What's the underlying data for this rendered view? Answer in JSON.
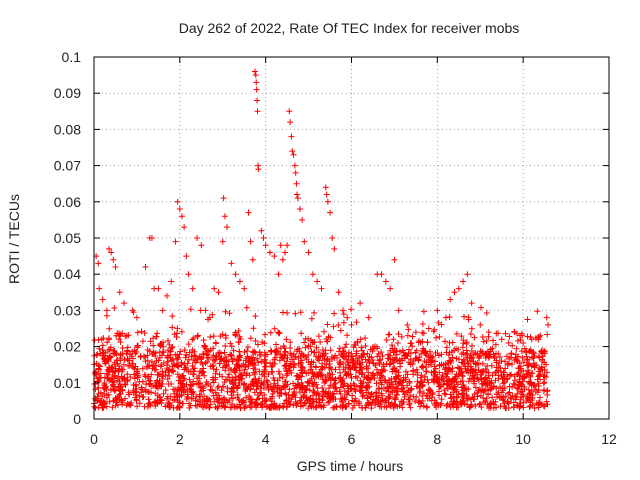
{
  "chart_data": {
    "type": "scatter",
    "title": "Day 262 of 2022, Rate Of TEC Index for receiver mobs",
    "xlabel": "GPS time / hours",
    "ylabel": "ROTI / TECUs",
    "xlim": [
      0,
      12
    ],
    "ylim": [
      0,
      0.1
    ],
    "xticks": [
      0,
      2,
      4,
      6,
      8,
      10,
      12
    ],
    "xtick_labels": [
      "0",
      "2",
      "4",
      "6",
      "8",
      "10",
      "12"
    ],
    "yticks": [
      0,
      0.01,
      0.02,
      0.03,
      0.04,
      0.05,
      0.06,
      0.07,
      0.08,
      0.09,
      0.1
    ],
    "ytick_labels": [
      "0",
      "0.01",
      "0.02",
      "0.03",
      "0.04",
      "0.05",
      "0.06",
      "0.07",
      "0.08",
      "0.09",
      "0.1"
    ],
    "grid": true,
    "marker": "+",
    "color": "#ff0000",
    "x_range_of_data": [
      0,
      10.6
    ],
    "series": [
      {
        "points": [
          [
            0.05,
            0.045
          ],
          [
            0.1,
            0.043
          ],
          [
            0.12,
            0.036
          ],
          [
            0.2,
            0.033
          ],
          [
            0.3,
            0.03
          ],
          [
            0.35,
            0.047
          ],
          [
            0.4,
            0.046
          ],
          [
            0.45,
            0.044
          ],
          [
            0.5,
            0.042
          ],
          [
            0.6,
            0.035
          ],
          [
            0.7,
            0.032
          ],
          [
            0.9,
            0.03
          ],
          [
            1.0,
            0.028
          ],
          [
            1.2,
            0.042
          ],
          [
            1.3,
            0.05
          ],
          [
            1.35,
            0.05
          ],
          [
            1.4,
            0.036
          ],
          [
            1.5,
            0.036
          ],
          [
            1.6,
            0.03
          ],
          [
            1.7,
            0.034
          ],
          [
            1.8,
            0.038
          ],
          [
            1.9,
            0.049
          ],
          [
            1.95,
            0.06
          ],
          [
            2.0,
            0.058
          ],
          [
            2.05,
            0.056
          ],
          [
            2.1,
            0.053
          ],
          [
            2.15,
            0.045
          ],
          [
            2.2,
            0.04
          ],
          [
            2.3,
            0.036
          ],
          [
            2.4,
            0.05
          ],
          [
            2.5,
            0.048
          ],
          [
            2.6,
            0.03
          ],
          [
            2.7,
            0.028
          ],
          [
            2.8,
            0.036
          ],
          [
            2.9,
            0.035
          ],
          [
            3.0,
            0.049
          ],
          [
            3.02,
            0.061
          ],
          [
            3.05,
            0.056
          ],
          [
            3.1,
            0.053
          ],
          [
            3.2,
            0.043
          ],
          [
            3.3,
            0.04
          ],
          [
            3.4,
            0.038
          ],
          [
            3.5,
            0.036
          ],
          [
            3.6,
            0.057
          ],
          [
            3.65,
            0.049
          ],
          [
            3.7,
            0.044
          ],
          [
            3.75,
            0.096
          ],
          [
            3.77,
            0.095
          ],
          [
            3.78,
            0.093
          ],
          [
            3.79,
            0.091
          ],
          [
            3.8,
            0.088
          ],
          [
            3.81,
            0.085
          ],
          [
            3.82,
            0.07
          ],
          [
            3.83,
            0.069
          ],
          [
            3.9,
            0.052
          ],
          [
            3.95,
            0.05
          ],
          [
            4.0,
            0.048
          ],
          [
            4.1,
            0.046
          ],
          [
            4.2,
            0.045
          ],
          [
            4.3,
            0.04
          ],
          [
            4.35,
            0.048
          ],
          [
            4.4,
            0.044
          ],
          [
            4.45,
            0.046
          ],
          [
            4.5,
            0.048
          ],
          [
            4.55,
            0.085
          ],
          [
            4.57,
            0.082
          ],
          [
            4.6,
            0.078
          ],
          [
            4.62,
            0.074
          ],
          [
            4.65,
            0.073
          ],
          [
            4.68,
            0.07
          ],
          [
            4.7,
            0.068
          ],
          [
            4.72,
            0.065
          ],
          [
            4.73,
            0.062
          ],
          [
            4.75,
            0.061
          ],
          [
            4.8,
            0.058
          ],
          [
            4.85,
            0.055
          ],
          [
            4.9,
            0.049
          ],
          [
            5.0,
            0.046
          ],
          [
            5.1,
            0.04
          ],
          [
            5.2,
            0.038
          ],
          [
            5.3,
            0.036
          ],
          [
            5.4,
            0.064
          ],
          [
            5.42,
            0.062
          ],
          [
            5.45,
            0.06
          ],
          [
            5.5,
            0.057
          ],
          [
            5.55,
            0.05
          ],
          [
            5.6,
            0.047
          ],
          [
            5.7,
            0.035
          ],
          [
            5.8,
            0.03
          ],
          [
            5.9,
            0.028
          ],
          [
            6.0,
            0.026
          ],
          [
            6.2,
            0.032
          ],
          [
            6.4,
            0.028
          ],
          [
            6.6,
            0.04
          ],
          [
            6.7,
            0.04
          ],
          [
            6.8,
            0.038
          ],
          [
            6.9,
            0.036
          ],
          [
            7.0,
            0.044
          ],
          [
            7.1,
            0.03
          ],
          [
            7.3,
            0.026
          ],
          [
            7.5,
            0.024
          ],
          [
            7.8,
            0.025
          ],
          [
            8.0,
            0.03
          ],
          [
            8.2,
            0.028
          ],
          [
            8.3,
            0.033
          ],
          [
            8.4,
            0.035
          ],
          [
            8.5,
            0.036
          ],
          [
            8.6,
            0.038
          ],
          [
            8.7,
            0.04
          ],
          [
            8.8,
            0.032
          ],
          [
            9.0,
            0.026
          ],
          [
            9.2,
            0.024
          ],
          [
            9.5,
            0.022
          ],
          [
            9.8,
            0.024
          ],
          [
            10.0,
            0.021
          ],
          [
            10.2,
            0.022
          ],
          [
            10.4,
            0.023
          ],
          [
            10.55,
            0.028
          ],
          [
            10.58,
            0.026
          ]
        ]
      }
    ]
  }
}
